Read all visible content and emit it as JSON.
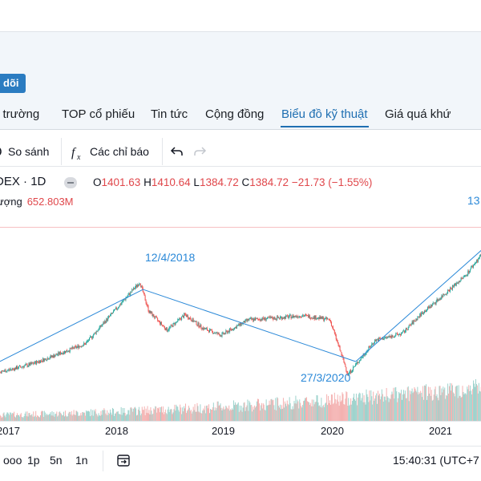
{
  "header": {
    "follow_label": "dõi"
  },
  "nav": {
    "items": [
      {
        "label": "ị trường"
      },
      {
        "label": "TOP cổ phiếu"
      },
      {
        "label": "Tin tức"
      },
      {
        "label": "Cộng đồng"
      },
      {
        "label": "Biểu đồ kỹ thuật"
      },
      {
        "label": "Giá quá khứ"
      }
    ],
    "active_index": 4
  },
  "toolbar": {
    "compare_label": "So sánh",
    "indicators_label": "Các chỉ báo",
    "icons": [
      "compare-icon",
      "function-icon",
      "undo-icon",
      "redo-icon"
    ]
  },
  "legend": {
    "symbol": "DEX",
    "interval": "1D",
    "open_key": "O",
    "open": "1401.63",
    "high_key": "H",
    "high": "1410.64",
    "low_key": "L",
    "low": "1384.72",
    "close_key": "C",
    "close": "1384.72",
    "change": "−21.73 (−1.55%)",
    "volume_label": "ượng",
    "volume": "652.803M",
    "right_tag": "13"
  },
  "chart_data": {
    "type": "line",
    "title": "",
    "x_ticks": [
      "2017",
      "2018",
      "2019",
      "2020",
      "2021"
    ],
    "annotations": [
      {
        "text": "12/4/2018",
        "date": "2018-04-12"
      },
      {
        "text": "27/3/2020",
        "date": "2020-03-27"
      }
    ],
    "series": [
      {
        "type": "candlestick",
        "x": [
          "2016-10",
          "2017-01",
          "2017-04",
          "2017-07",
          "2017-10",
          "2018-01",
          "2018-04",
          "2018-05",
          "2018-07",
          "2018-09",
          "2018-11",
          "2019-01",
          "2019-04",
          "2019-07",
          "2019-10",
          "2020-01",
          "2020-03",
          "2020-06",
          "2020-09",
          "2020-11",
          "2021-01",
          "2021-04",
          "2021-06"
        ],
        "values": [
          650,
          680,
          720,
          780,
          840,
          1020,
          1200,
          1030,
          920,
          1010,
          930,
          890,
          980,
          990,
          1005,
          980,
          660,
          860,
          900,
          1010,
          1100,
          1240,
          1380
        ]
      }
    ],
    "trendlines": [
      {
        "from": "2016-10",
        "to": "2018-04-12"
      },
      {
        "from": "2018-04-12",
        "to": "2020-03-27"
      },
      {
        "from": "2020-03-27",
        "to": "2021-06"
      }
    ],
    "volume": true,
    "colors": {
      "up": "#26a69a",
      "down": "#ef5350",
      "trendline": "#2b89d8",
      "volume_up": "#9ed3cd",
      "volume_down": "#f4b1b0"
    }
  },
  "bottom": {
    "more_label": "ooo",
    "range_1d": "1p",
    "range_5": "5n",
    "range_1y": "1n",
    "clock": "15:40:31 (UTC+7"
  }
}
